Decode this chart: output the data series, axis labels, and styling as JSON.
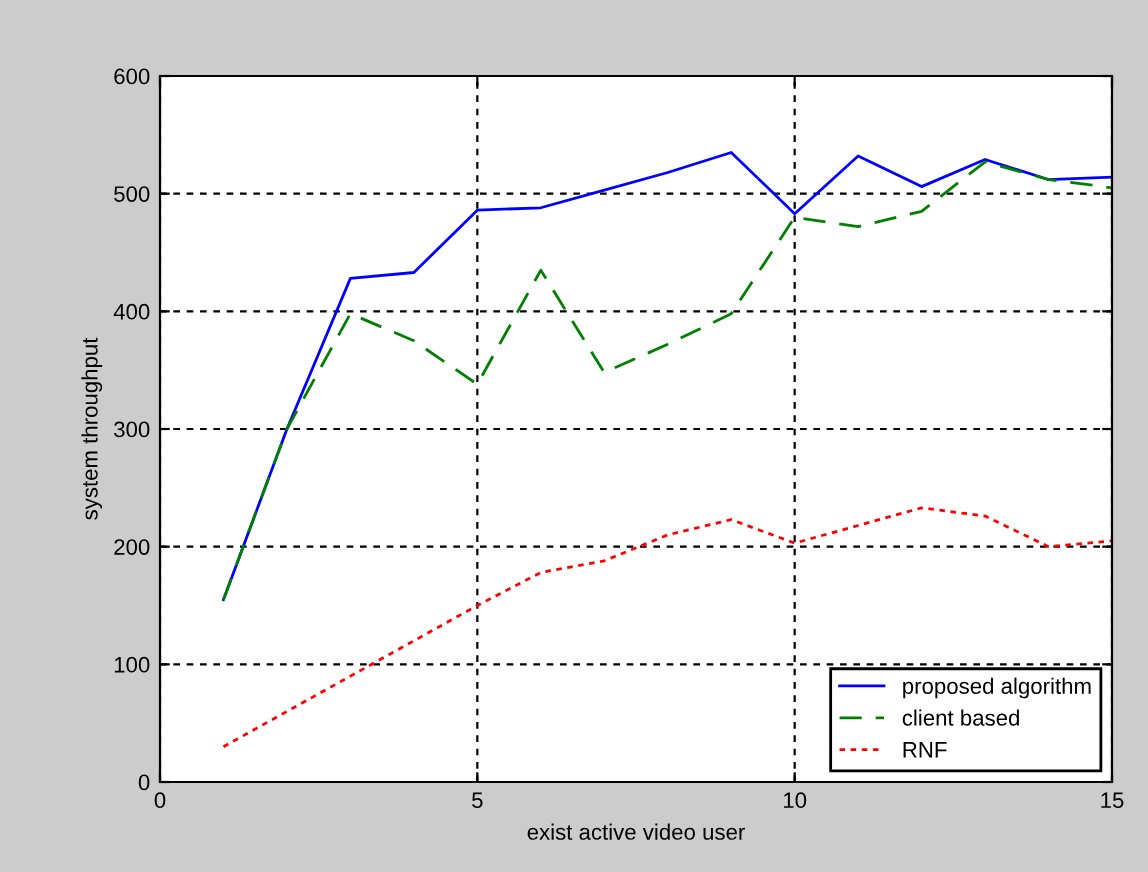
{
  "chart_data": {
    "type": "line",
    "xlabel": "exist active video user",
    "ylabel": "system throughput",
    "x": [
      1,
      2,
      3,
      4,
      5,
      6,
      7,
      8,
      9,
      10,
      11,
      12,
      13,
      14,
      15
    ],
    "series": [
      {
        "name": "proposed algorithm",
        "color": "#0000ff",
        "line_style": "solid",
        "values": [
          155,
          300,
          428,
          433,
          486,
          488,
          503,
          518,
          535,
          483,
          532,
          506,
          529,
          512,
          514
        ]
      },
      {
        "name": "client based",
        "color": "#008000",
        "line_style": "dashed",
        "values": [
          155,
          300,
          398,
          375,
          338,
          435,
          348,
          372,
          398,
          480,
          472,
          485,
          527,
          512,
          505
        ]
      },
      {
        "name": "RNF",
        "color": "#ff0000",
        "line_style": "dotted",
        "values": [
          30,
          60,
          90,
          120,
          150,
          178,
          188,
          210,
          223,
          203,
          218,
          233,
          226,
          200,
          205
        ]
      }
    ],
    "xlim": [
      0,
      15
    ],
    "xticks": [
      0,
      5,
      10,
      15
    ],
    "ylim": [
      0,
      600
    ],
    "yticks": [
      0,
      100,
      200,
      300,
      400,
      500,
      600
    ],
    "grid": true,
    "legend": "bottom right"
  }
}
